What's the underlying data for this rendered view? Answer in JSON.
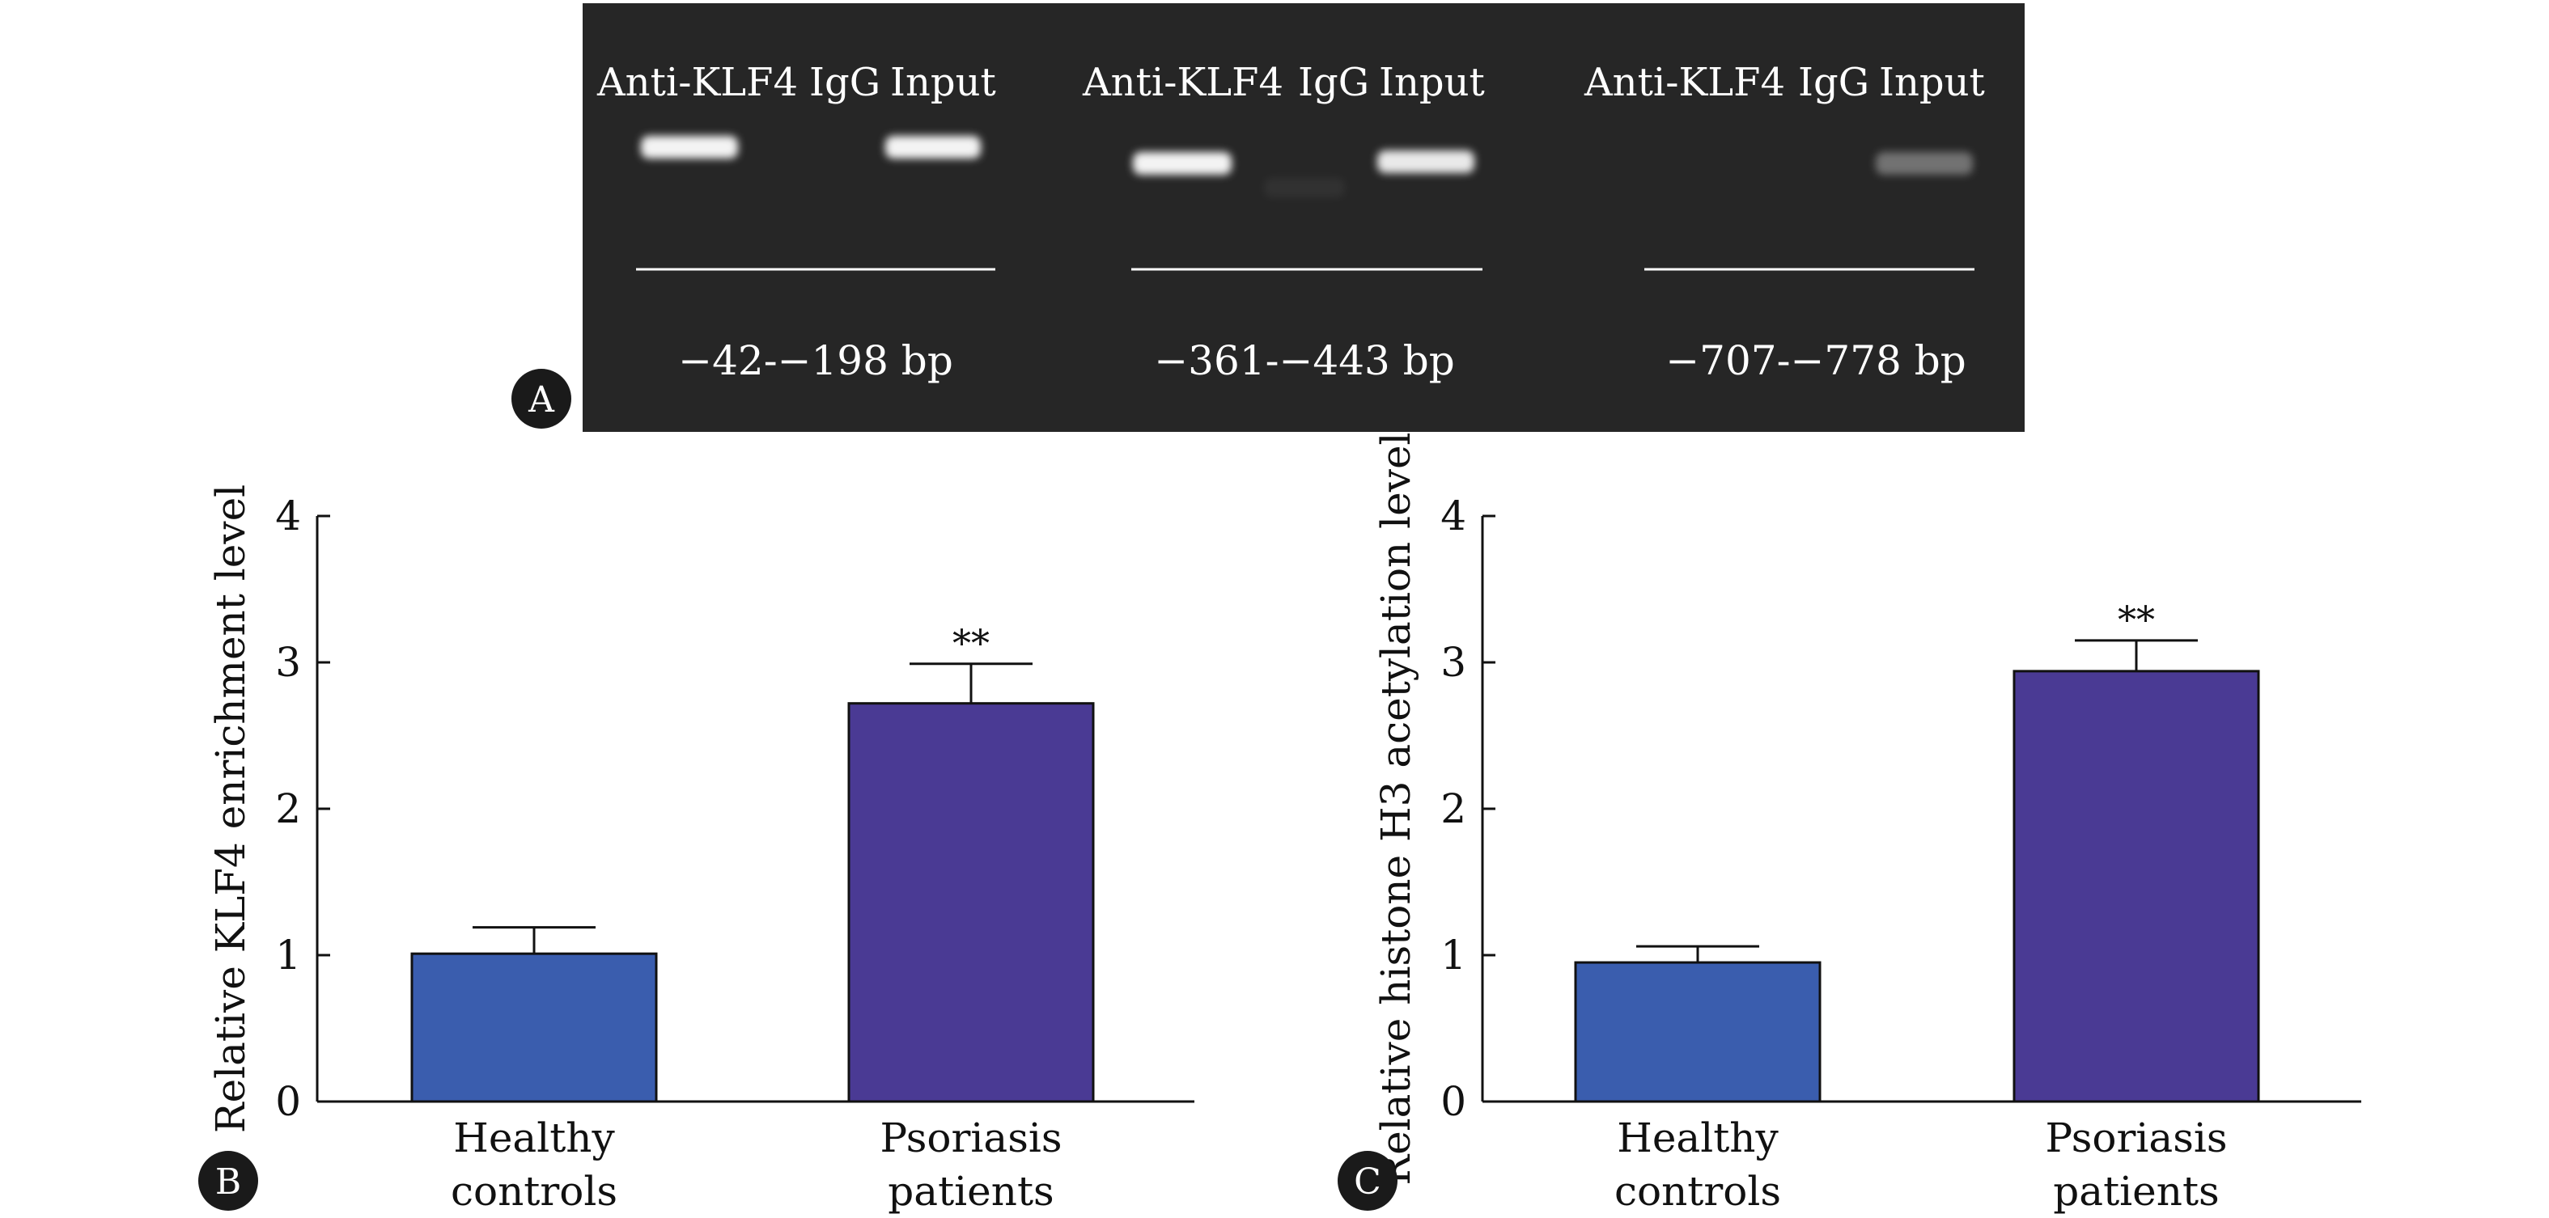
{
  "panel_a": {
    "letter": "A",
    "groups": [
      {
        "lanes": [
          "Anti-KLF4",
          "IgG",
          "Input"
        ],
        "region": "−42-−198 bp",
        "band_intensity": [
          0.95,
          0.0,
          0.95
        ]
      },
      {
        "lanes": [
          "Anti-KLF4",
          "IgG",
          "Input"
        ],
        "region": "−361-−443 bp",
        "band_intensity": [
          0.95,
          0.05,
          0.9
        ]
      },
      {
        "lanes": [
          "Anti-KLF4",
          "IgG",
          "Input"
        ],
        "region": "−707-−778 bp",
        "band_intensity": [
          0.0,
          0.0,
          0.35
        ]
      }
    ]
  },
  "colors": {
    "gel_background": "#262626",
    "band": "#ffffff",
    "healthy_bar": "#3a5dae",
    "psoriasis_bar": "#4a3a94",
    "panel_letter_bg": "#1a1a1a"
  },
  "chart_data": [
    {
      "type": "bar",
      "panel": "B",
      "categories": [
        "Healthy controls",
        "Psoriasis patients"
      ],
      "category_lines": [
        [
          "Healthy",
          "controls"
        ],
        [
          "Psoriasis",
          "patients"
        ]
      ],
      "values": [
        1.01,
        2.72
      ],
      "errors": [
        0.18,
        0.27
      ],
      "significance": [
        "",
        "**"
      ],
      "ylabel": "Relative KLF4 enrichment level",
      "ylim": [
        0,
        4
      ],
      "yticks": [
        "0",
        "1",
        "2",
        "3",
        "4"
      ]
    },
    {
      "type": "bar",
      "panel": "C",
      "categories": [
        "Healthy controls",
        "Psoriasis patients"
      ],
      "category_lines": [
        [
          "Healthy",
          "controls"
        ],
        [
          "Psoriasis",
          "patients"
        ]
      ],
      "values": [
        0.95,
        2.94
      ],
      "errors": [
        0.11,
        0.21
      ],
      "significance": [
        "",
        "**"
      ],
      "ylabel": "Relative histone H3 acetylation level",
      "ylim": [
        0,
        4
      ],
      "yticks": [
        "0",
        "1",
        "2",
        "3",
        "4"
      ]
    }
  ]
}
